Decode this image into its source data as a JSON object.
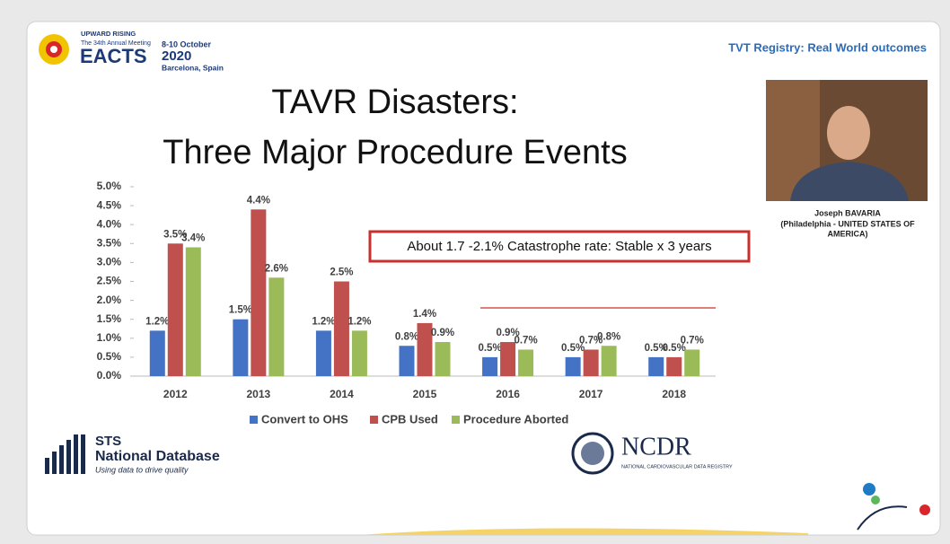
{
  "slide": {
    "logo_tagline": "UPWARD RISING",
    "logo_meeting": "The 34th Annual Meeting",
    "logo_name": "EACTS",
    "logo_dates": "8-10 October",
    "logo_year": "2020",
    "logo_place": "Barcelona, Spain",
    "header_right": "TVT Registry: Real World outcomes",
    "title_lines": [
      "TAVR Disasters:",
      "Three Major Procedure Events"
    ],
    "speaker_name": "Joseph BAVARIA",
    "speaker_affiliation": [
      "(Philadelphia - UNITED STATES OF",
      "AMERICA)"
    ],
    "sts_short": "STS",
    "sts_name": "National Database",
    "sts_tagline": "Using data to drive quality",
    "ncdr_name": "NCDR",
    "ncdr_full": "NATIONAL CARDIOVASCULAR DATA REGISTRY"
  },
  "chart_data": {
    "type": "bar",
    "annotation": "About 1.7 -2.1% Catastrophe rate: Stable x 3 years",
    "categories": [
      "2012",
      "2013",
      "2014",
      "2015",
      "2016",
      "2017",
      "2018"
    ],
    "series": [
      {
        "name": "Convert to OHS",
        "color": "#4472c4",
        "values": [
          1.2,
          1.5,
          1.2,
          0.8,
          0.5,
          0.5,
          0.5
        ],
        "value_labels": [
          "1.2%",
          "1.5%",
          "1.2%",
          "0.8%",
          "0.5%",
          "0.5%",
          "0.5%"
        ]
      },
      {
        "name": "CPB Used",
        "color": "#c0504d",
        "values": [
          3.5,
          4.4,
          2.5,
          1.4,
          0.9,
          0.7,
          0.5
        ],
        "value_labels": [
          "3.5%",
          "4.4%",
          "2.5%",
          "1.4%",
          "0.9%",
          "0.7%",
          "0.5%"
        ]
      },
      {
        "name": "Procedure Aborted",
        "color": "#9bbb59",
        "values": [
          3.4,
          2.6,
          1.2,
          0.9,
          0.7,
          0.8,
          0.7
        ],
        "value_labels": [
          "3.4%",
          "2.6%",
          "1.2%",
          "0.9%",
          "0.7%",
          "0.8%",
          "0.7%"
        ]
      }
    ],
    "ylim": [
      0,
      5
    ],
    "yticks": [
      {
        "value": 0,
        "label": "0.0%"
      },
      {
        "value": 0.5,
        "label": "0.5%"
      },
      {
        "value": 1,
        "label": "1.0%"
      },
      {
        "value": 1.5,
        "label": "1.5%"
      },
      {
        "value": 2,
        "label": "2.0%"
      },
      {
        "value": 2.5,
        "label": "2.5%"
      },
      {
        "value": 3,
        "label": "3.0%"
      },
      {
        "value": 3.5,
        "label": "3.5%"
      },
      {
        "value": 4,
        "label": "4.0%"
      },
      {
        "value": 4.5,
        "label": "4.5%"
      },
      {
        "value": 5,
        "label": "5.0%"
      }
    ],
    "grid": false,
    "legend": "bottom"
  }
}
